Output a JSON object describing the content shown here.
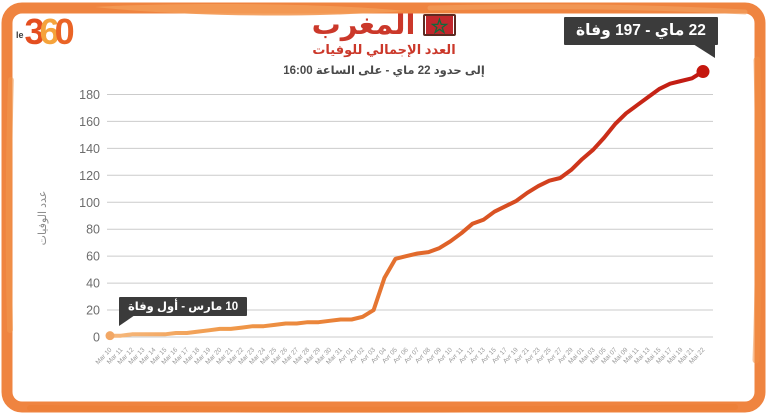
{
  "logo": {
    "prefix": "le",
    "digits": [
      "3",
      "6",
      "0"
    ]
  },
  "header": {
    "title": "المغرب",
    "subtitle": "العدد الإجمالي للوفيات",
    "note": "إلى حدود 22 ماي - على الساعة 16:00"
  },
  "badges": {
    "latest": "22 ماي - 197 وفاة",
    "first": "10 مارس - أول وفاة"
  },
  "colors": {
    "accent_red": "#cb382a",
    "badge_bg": "#3b3b3b",
    "frame_orange": "#ef8440",
    "grid": "#cbcbcb",
    "y_tick": "#6d6d6d",
    "x_tick": "#9a9a9a",
    "start_dot": "#f2a765",
    "end_dot": "#c5170e"
  },
  "chart_data": {
    "type": "line",
    "title": "العدد الإجمالي للوفيات - المغرب",
    "ylabel": "عدد الوفيات",
    "ylim": [
      0,
      200
    ],
    "yticks": [
      0,
      20,
      40,
      60,
      80,
      100,
      120,
      140,
      160,
      180
    ],
    "grid": true,
    "legend": "none",
    "x": [
      "Mar 10",
      "Mar 11",
      "Mar 12",
      "Mar 13",
      "Mar 14",
      "Mar 15",
      "Mar 16",
      "Mar 17",
      "Mar 18",
      "Mar 19",
      "Mar 20",
      "Mar 21",
      "Mar 22",
      "Mar 23",
      "Mar 24",
      "Mar 25",
      "Mar 26",
      "Mar 27",
      "Mar 28",
      "Mar 29",
      "Mar 30",
      "Mar 31",
      "Avr 01",
      "Avr 02",
      "Avr 03",
      "Avr 04",
      "Avr 05",
      "Avr 06",
      "Avr 07",
      "Avr 08",
      "Avr 09",
      "Avr 10",
      "Avr 11",
      "Avr 12",
      "Avr 13",
      "Avr 15",
      "Avr 17",
      "Avr 19",
      "Avr 21",
      "Avr 23",
      "Avr 25",
      "Avr 27",
      "Avr 29",
      "Mai 01",
      "Mai 03",
      "Mai 05",
      "Mai 07",
      "Mai 09",
      "Mai 11",
      "Mai 13",
      "Mai 15",
      "Mai 17",
      "Mai 19",
      "Mai 21",
      "Mai 22"
    ],
    "series": [
      {
        "name": "cumulative-deaths",
        "values": [
          1,
          1,
          2,
          2,
          2,
          2,
          3,
          3,
          4,
          5,
          6,
          6,
          7,
          8,
          8,
          9,
          10,
          10,
          11,
          11,
          12,
          13,
          13,
          15,
          20,
          44,
          58,
          60,
          62,
          63,
          66,
          71,
          77,
          84,
          87,
          93,
          97,
          101,
          107,
          112,
          116,
          118,
          124,
          132,
          139,
          148,
          158,
          166,
          172,
          178,
          184,
          188,
          190,
          192,
          197
        ]
      }
    ],
    "annotations": [
      {
        "x": "Mar 10",
        "y": 1,
        "label": "10 مارس - أول وفاة"
      },
      {
        "x": "Mai 22",
        "y": 197,
        "label": "22 ماي - 197 وفاة"
      }
    ],
    "line_gradient": [
      "#f6b97e",
      "#f0994a",
      "#e87e35",
      "#dd5c26",
      "#cd331a",
      "#c01712"
    ]
  }
}
